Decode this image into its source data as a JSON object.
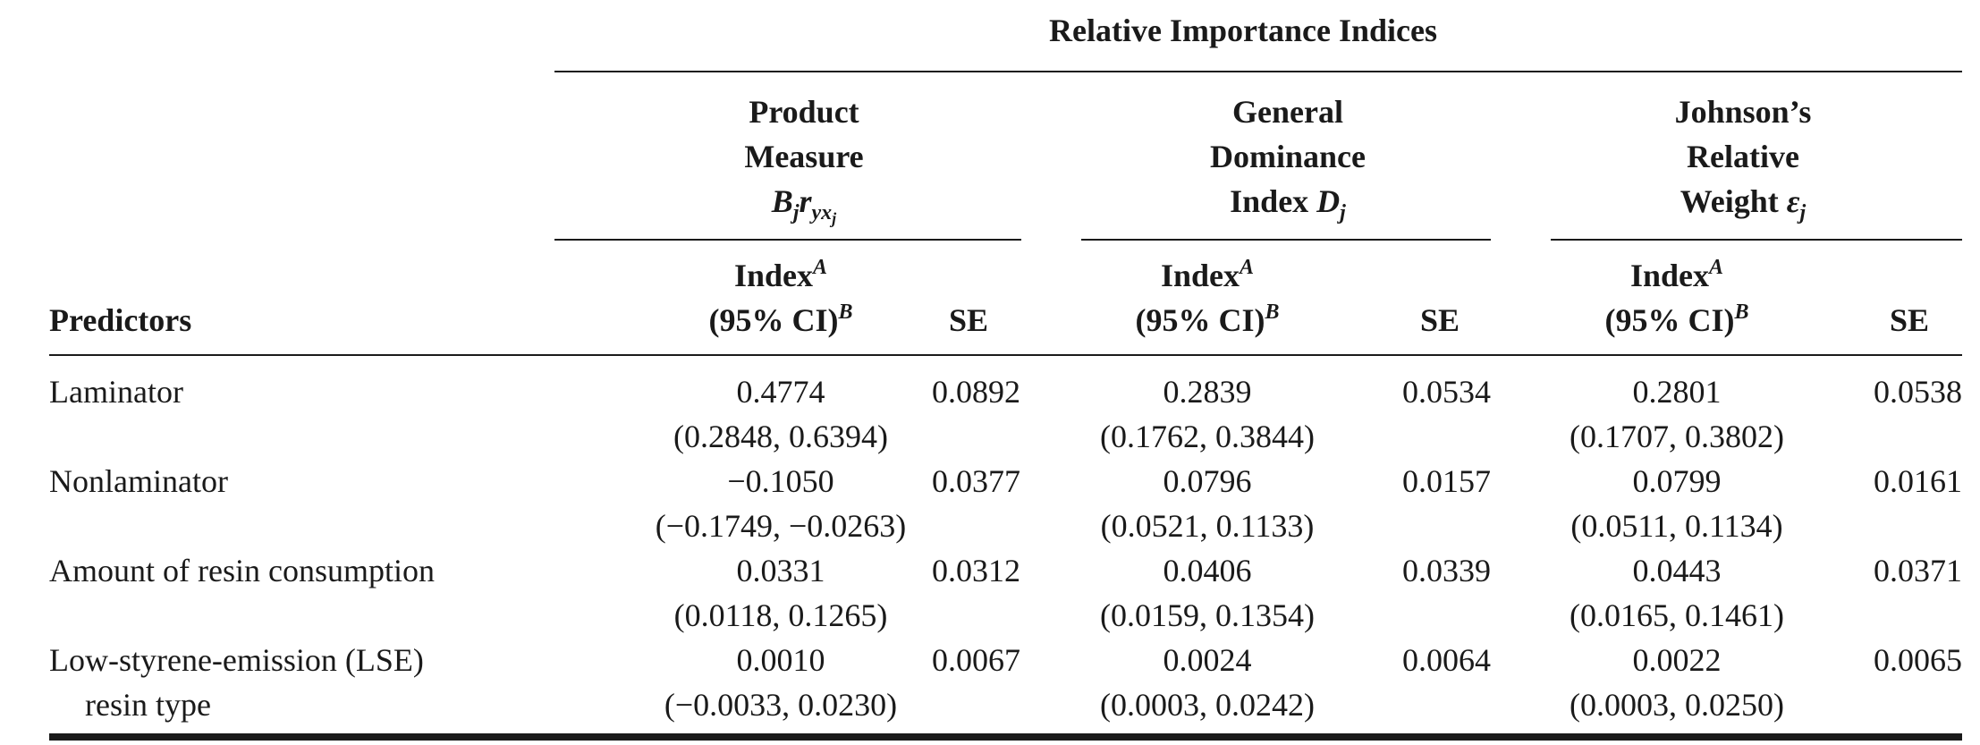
{
  "super_header": "Relative Importance Indices",
  "groups": [
    {
      "lines": [
        "Product",
        "Measure"
      ],
      "symbol": {
        "base": "B",
        "sub1": "j",
        "mid": "r",
        "sub2": "yx",
        "sub3": "j"
      }
    },
    {
      "lines": [
        "General",
        "Dominance"
      ],
      "last_prefix": "Index ",
      "symbol_base": "D",
      "symbol_sub": "j"
    },
    {
      "lines": [
        "Johnson’s",
        "Relative"
      ],
      "last_prefix": "Weight ",
      "symbol_base": "ε",
      "symbol_sub": "j"
    }
  ],
  "subheader": {
    "predictors": "Predictors",
    "index_label": "Index",
    "index_sup": "A",
    "ci_label": "(95% CI)",
    "ci_sup": "B",
    "se": "SE"
  },
  "rows": [
    {
      "name": [
        "Laminator"
      ],
      "cells": [
        {
          "index": "0.4774",
          "ci": "(0.2848, 0.6394)",
          "se": "0.0892"
        },
        {
          "index": "0.2839",
          "ci": "(0.1762, 0.3844)",
          "se": "0.0534"
        },
        {
          "index": "0.2801",
          "ci": "(0.1707, 0.3802)",
          "se": "0.0538"
        }
      ]
    },
    {
      "name": [
        "Nonlaminator"
      ],
      "cells": [
        {
          "index": "−0.1050",
          "ci": "(−0.1749, −0.0263)",
          "se": "0.0377"
        },
        {
          "index": "0.0796",
          "ci": "(0.0521, 0.1133)",
          "se": "0.0157"
        },
        {
          "index": "0.0799",
          "ci": "(0.0511, 0.1134)",
          "se": "0.0161"
        }
      ]
    },
    {
      "name": [
        "Amount of resin consumption"
      ],
      "cells": [
        {
          "index": "0.0331",
          "ci": "(0.0118, 0.1265)",
          "se": "0.0312"
        },
        {
          "index": "0.0406",
          "ci": "(0.0159, 0.1354)",
          "se": "0.0339"
        },
        {
          "index": "0.0443",
          "ci": "(0.0165, 0.1461)",
          "se": "0.0371"
        }
      ]
    },
    {
      "name": [
        "Low-styrene-emission (LSE)",
        "resin type"
      ],
      "cells": [
        {
          "index": "0.0010",
          "ci": "(−0.0033, 0.0230)",
          "se": "0.0067"
        },
        {
          "index": "0.0024",
          "ci": "(0.0003, 0.0242)",
          "se": "0.0064"
        },
        {
          "index": "0.0022",
          "ci": "(0.0003, 0.0250)",
          "se": "0.0065"
        }
      ]
    }
  ]
}
